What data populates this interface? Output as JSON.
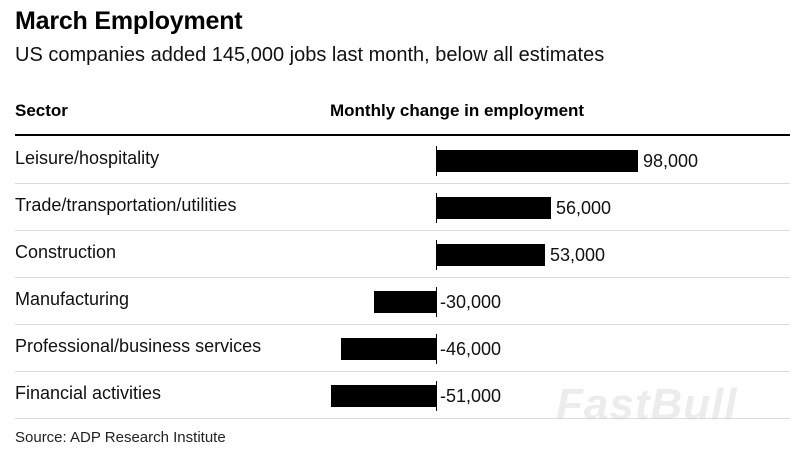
{
  "chart": {
    "title": "March Employment",
    "subtitle": "US companies added 145,000 jobs last month, below all estimates",
    "sector_header": "Sector",
    "change_header": "Monthly change in employment",
    "source": "Source: ADP Research Institute",
    "watermark": "FastBull"
  },
  "chart_data": {
    "type": "bar",
    "orientation": "horizontal",
    "title": "March Employment",
    "subtitle": "US companies added 145,000 jobs last month, below all estimates",
    "xlabel": "Monthly change in employment",
    "ylabel": "Sector",
    "categories": [
      "Leisure/hospitality",
      "Trade/transportation/utilities",
      "Construction",
      "Manufacturing",
      "Professional/business services",
      "Financial activities"
    ],
    "values": [
      98000,
      56000,
      53000,
      -30000,
      -46000,
      -51000
    ],
    "value_labels": [
      "98,000",
      "56,000",
      "53,000",
      "-30,000",
      "-46,000",
      "-51,000"
    ],
    "bar_color": "#000000",
    "grid": false,
    "legend": "none"
  }
}
